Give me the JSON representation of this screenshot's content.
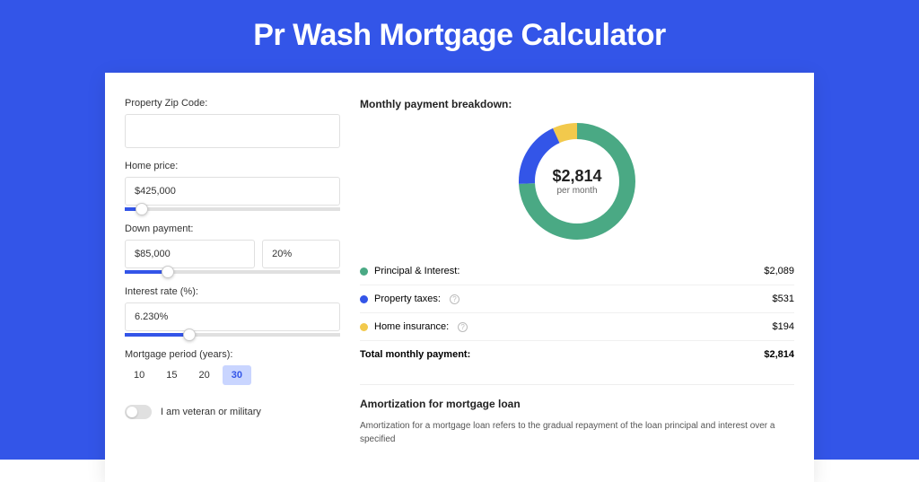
{
  "colors": {
    "page_bg": "#3355e8",
    "card_bg": "#ffffff",
    "title_text": "#ffffff",
    "input_border": "#e0e0e0",
    "slider_fill": "#3355e8",
    "period_active_bg": "#c9d5ff",
    "period_active_text": "#3355e8"
  },
  "title": "Pr Wash Mortgage Calculator",
  "form": {
    "zip_label": "Property Zip Code:",
    "zip_value": "",
    "home_price_label": "Home price:",
    "home_price_value": "$425,000",
    "home_price_slider_pct": 8,
    "down_label": "Down payment:",
    "down_value": "$85,000",
    "down_pct_value": "20%",
    "down_slider_pct": 20,
    "rate_label": "Interest rate (%):",
    "rate_value": "6.230%",
    "rate_slider_pct": 30,
    "period_label": "Mortgage period (years):",
    "period_options": [
      "10",
      "15",
      "20",
      "30"
    ],
    "period_active_index": 3,
    "veteran_label": "I am veteran or military",
    "veteran_on": false
  },
  "breakdown": {
    "title": "Monthly payment breakdown:",
    "donut": {
      "segments": [
        {
          "label": "Principal & Interest",
          "value": 2089,
          "display": "$2,089",
          "color": "#4aa984",
          "pct": 74.2
        },
        {
          "label": "Property taxes",
          "value": 531,
          "display": "$531",
          "color": "#3355e8",
          "pct": 18.9,
          "has_info": true
        },
        {
          "label": "Home insurance",
          "value": 194,
          "display": "$194",
          "color": "#f2c94c",
          "pct": 6.9,
          "has_info": true
        }
      ],
      "stroke_width": 18,
      "radius": 56,
      "center_value": "$2,814",
      "center_sub": "per month"
    },
    "labels": {
      "pi": "Principal & Interest:",
      "tax": "Property taxes:",
      "ins": "Home insurance:",
      "total": "Total monthly payment:"
    },
    "total_display": "$2,814"
  },
  "amort": {
    "title": "Amortization for mortgage loan",
    "body_first_line": "Amortization for a mortgage loan refers to the gradual repayment of the loan principal and interest over a specified"
  }
}
